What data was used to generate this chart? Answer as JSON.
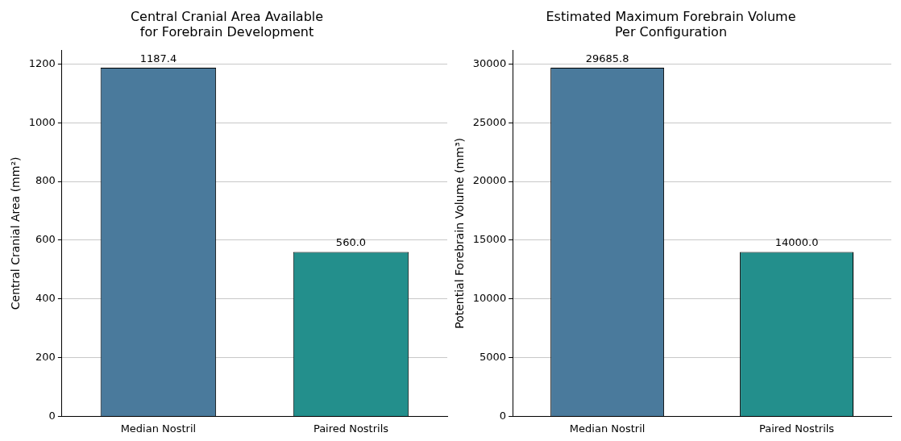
{
  "chart_data": [
    {
      "type": "bar",
      "title": "Central Cranial Area Available\nfor Forebrain Development",
      "ylabel": "Central Cranial Area (mm²)",
      "categories": [
        "Median Nostril",
        "Paired Nostrils"
      ],
      "values": [
        1187.4,
        560.0
      ],
      "colors": [
        "#4a7a9c",
        "#238f8c"
      ],
      "value_labels": [
        "1187.4",
        "560.0"
      ],
      "ylim": [
        0,
        1246.8
      ],
      "yticks": [
        0,
        200,
        400,
        600,
        800,
        1000,
        1200
      ],
      "grid": "y"
    },
    {
      "type": "bar",
      "title": "Estimated Maximum Forebrain Volume\nPer Configuration",
      "ylabel": "Potential Forebrain Volume (mm³)",
      "categories": [
        "Median Nostril",
        "Paired Nostrils"
      ],
      "values": [
        29685.8,
        14000.0
      ],
      "colors": [
        "#4a7a9c",
        "#238f8c"
      ],
      "value_labels": [
        "29685.8",
        "14000.0"
      ],
      "ylim": [
        0,
        31170
      ],
      "yticks": [
        0,
        5000,
        10000,
        15000,
        20000,
        25000,
        30000
      ],
      "grid": "y"
    }
  ]
}
